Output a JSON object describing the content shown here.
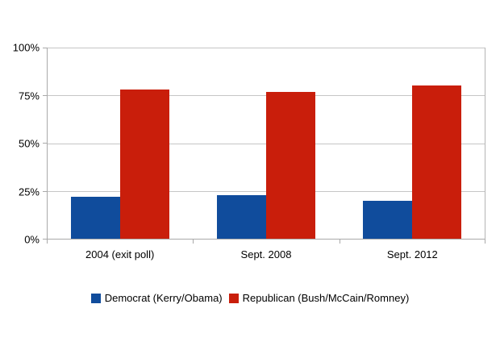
{
  "chart_data": {
    "type": "bar",
    "title": "",
    "categories": [
      "2004 (exit poll)",
      "Sept. 2008",
      "Sept. 2012"
    ],
    "series": [
      {
        "name": "Democrat (Kerry/Obama)",
        "color": "#104c9c",
        "values": [
          22,
          23,
          20
        ]
      },
      {
        "name": "Republican (Bush/McCain/Romney)",
        "color": "#c91e0b",
        "values": [
          78,
          77,
          80
        ]
      }
    ],
    "xlabel": "",
    "ylabel": "",
    "ylim": [
      0,
      100
    ],
    "y_ticks": [
      "0%",
      "25%",
      "50%",
      "75%",
      "100%"
    ],
    "grid": true,
    "legend_position": "bottom",
    "background_color": "#ffffff"
  }
}
